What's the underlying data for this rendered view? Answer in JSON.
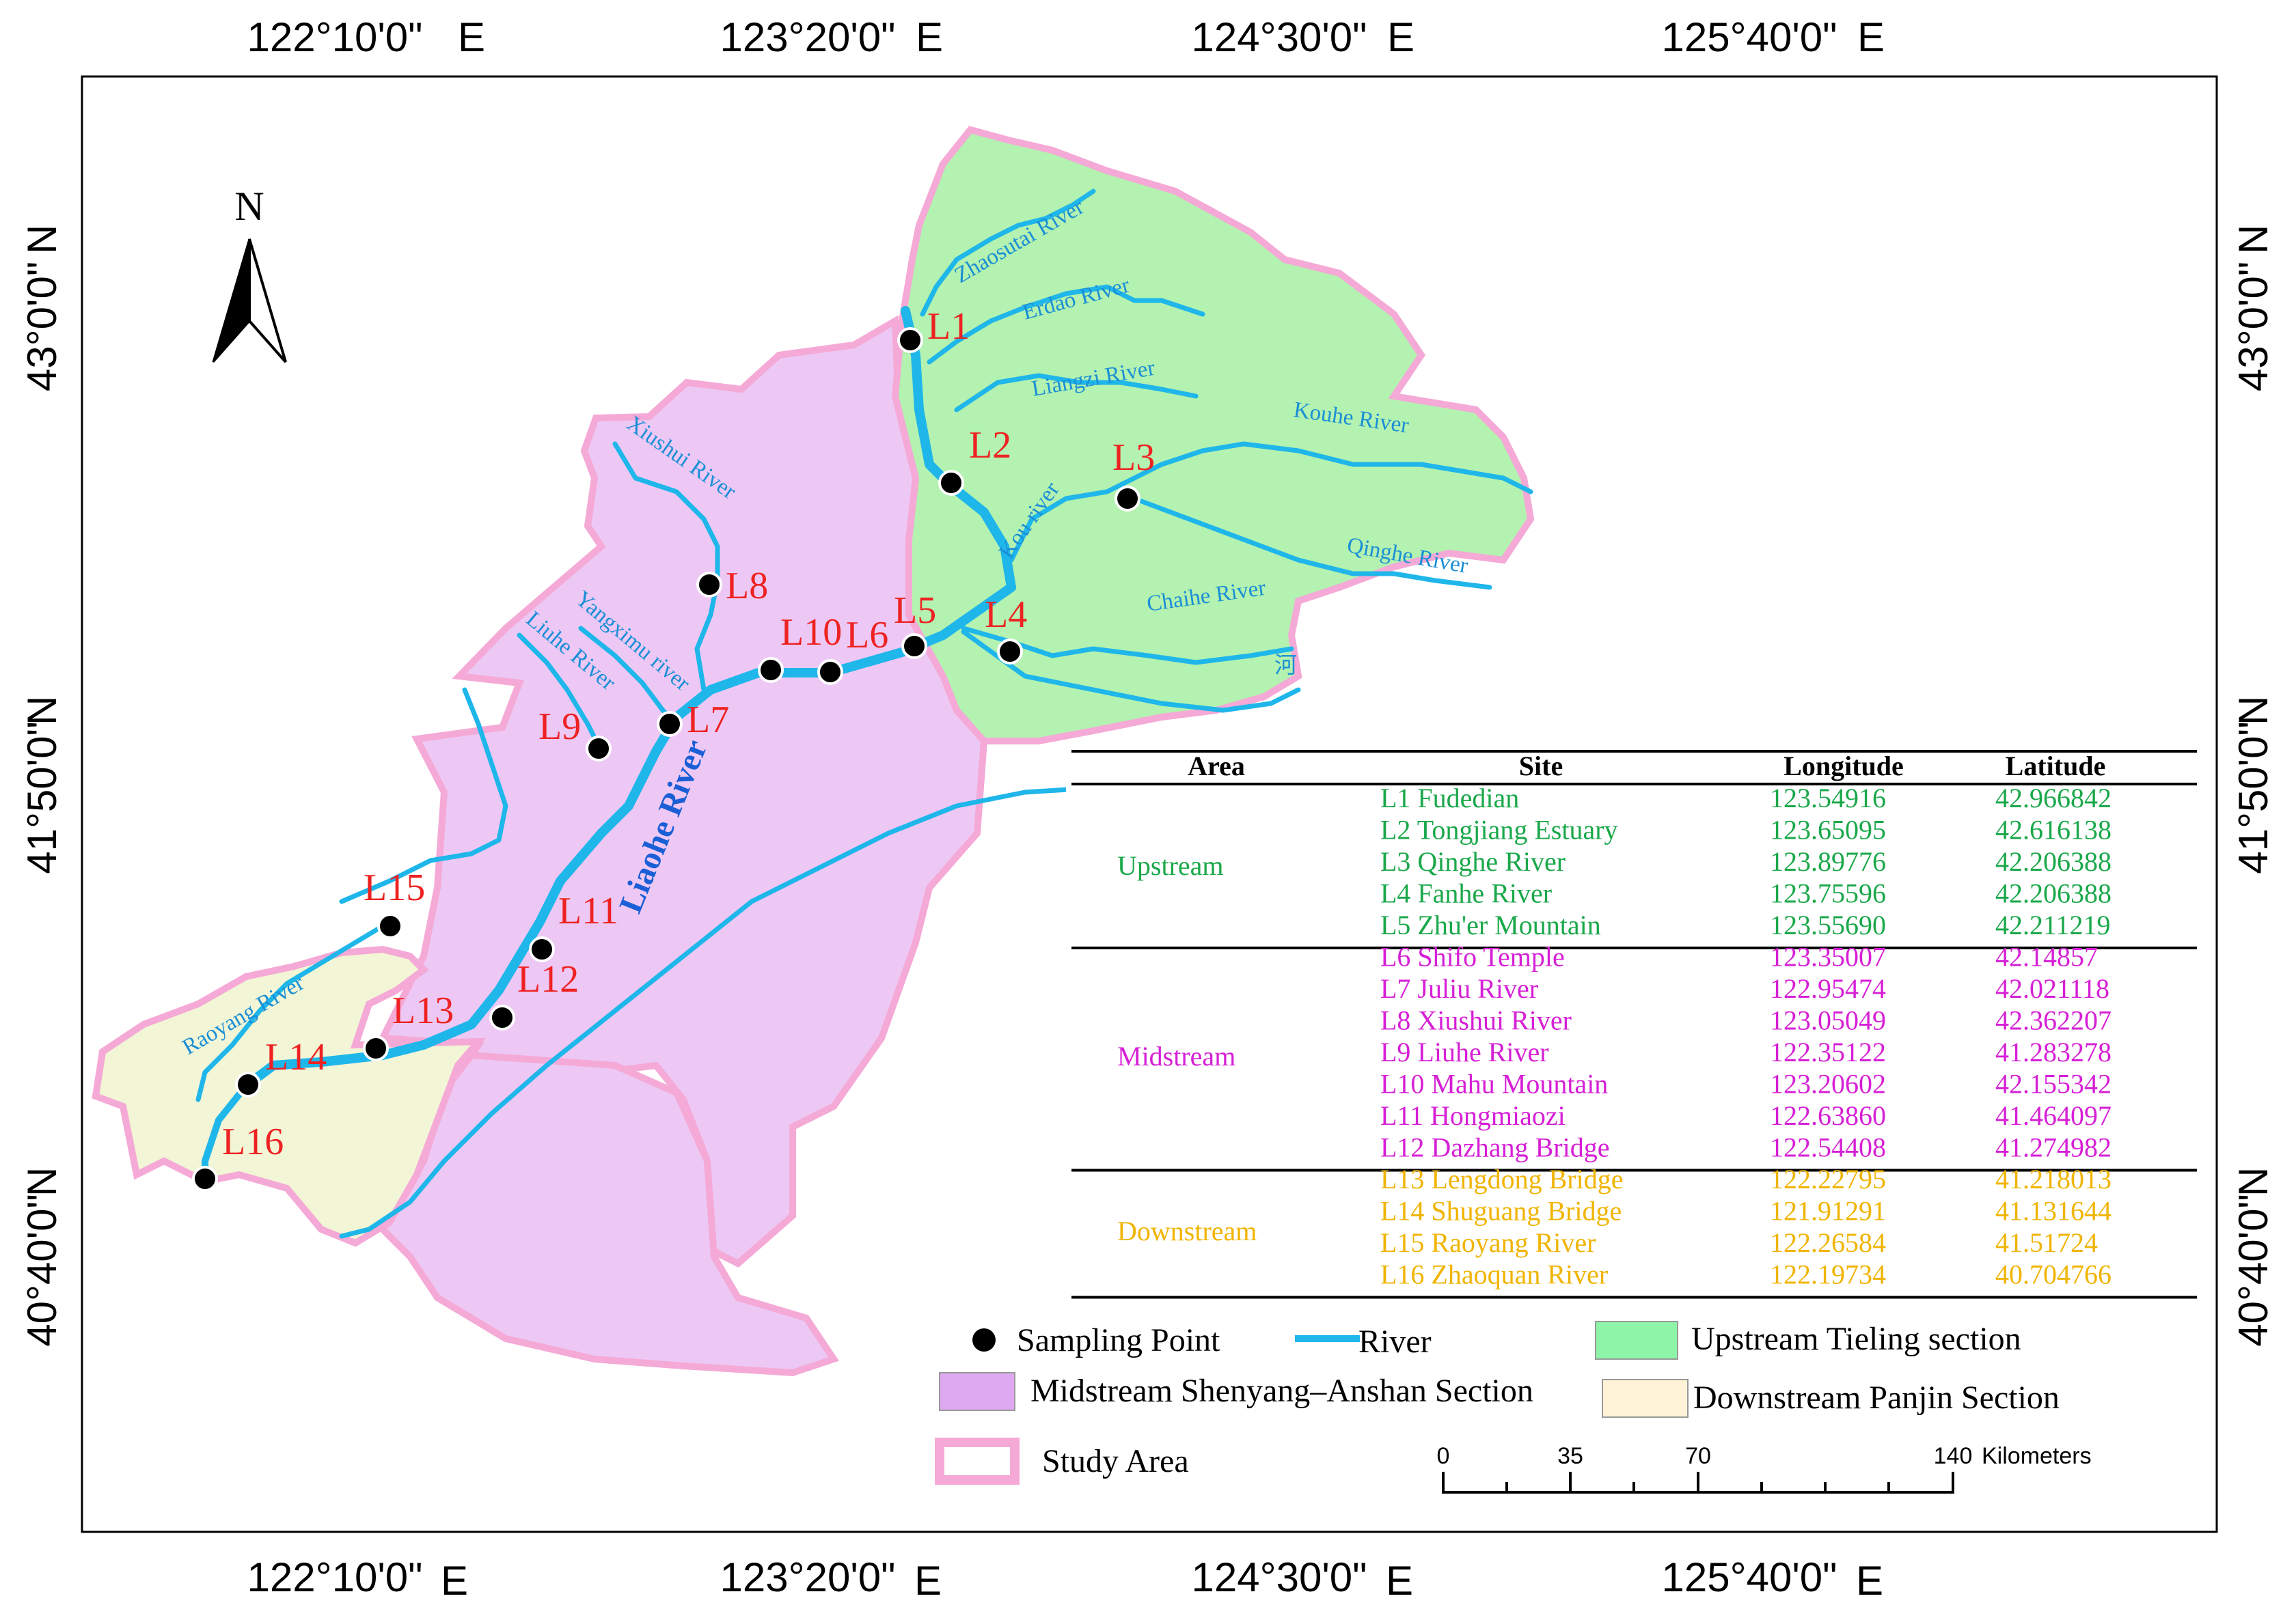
{
  "coordinates": {
    "top_longitudes": [
      "122°10'0\"",
      "123°20'0\"",
      "124°30'0\"",
      "125°40'0\""
    ],
    "bottom_longitudes": [
      "122°10'0\"",
      "123°20'0\"",
      "124°30'0\"",
      "125°40'0\""
    ],
    "east_suffix": "E",
    "left_latitudes": [
      "43°0'0\"",
      "41°50'0\"",
      "40°40'0\""
    ],
    "right_latitudes": [
      "43°0'0\"",
      "41°50'0\"",
      "40°40'0\""
    ],
    "north_suffix": "N"
  },
  "north_arrow": {
    "label": "N"
  },
  "rivers": {
    "zhaosutai": "Zhaosutai River",
    "erdao": "Erdao River",
    "liangzi": "Liangzi River",
    "kouhe": "Kouhe River",
    "qinghe": "Qinghe River",
    "kou": "Kou river",
    "chaihe": "Chaihe River",
    "he_char": "河",
    "xiushui": "Xiushui River",
    "yangximu": "Yangximu river",
    "liuhe": "Liuhe River",
    "liaohe": "Liaohe River",
    "raoyang": "Raoyang River"
  },
  "sites": {
    "L1": "L1",
    "L2": "L2",
    "L3": "L3",
    "L4": "L4",
    "L5": "L5",
    "L6": "L6",
    "L7": "L7",
    "L8": "L8",
    "L9": "L9",
    "L10": "L10",
    "L11": "L11",
    "L12": "L12",
    "L13": "L13",
    "L14": "L14",
    "L15": "L15",
    "L16": "L16"
  },
  "table": {
    "headers": {
      "area": "Area",
      "site": "Site",
      "longitude": "Longitude",
      "latitude": "Latitude"
    },
    "groups": [
      {
        "area": "Upstream",
        "color": "#1aa84a",
        "rows": [
          {
            "site": "L1 Fudedian",
            "lon": "123.54916",
            "lat": "42.966842"
          },
          {
            "site": "L2 Tongjiang Estuary",
            "lon": "123.65095",
            "lat": "42.616138"
          },
          {
            "site": "L3 Qinghe River",
            "lon": "123.89776",
            "lat": "42.206388"
          },
          {
            "site": "L4 Fanhe River",
            "lon": "123.75596",
            "lat": "42.206388"
          },
          {
            "site": "L5 Zhu'er Mountain",
            "lon": "123.55690",
            "lat": "42.211219"
          }
        ]
      },
      {
        "area": "Midstream",
        "color": "#d61fd6",
        "rows": [
          {
            "site": "L6 Shifo Temple",
            "lon": "123.35007",
            "lat": "42.14857"
          },
          {
            "site": "L7 Juliu River",
            "lon": "122.95474",
            "lat": "42.021118"
          },
          {
            "site": "L8 Xiushui River",
            "lon": "123.05049",
            "lat": "42.362207"
          },
          {
            "site": "L9 Liuhe River",
            "lon": "122.35122",
            "lat": "41.283278"
          },
          {
            "site": "L10 Mahu Mountain",
            "lon": "123.20602",
            "lat": "42.155342"
          },
          {
            "site": "L11 Hongmiaozi",
            "lon": "122.63860",
            "lat": "41.464097"
          },
          {
            "site": "L12 Dazhang Bridge",
            "lon": "122.54408",
            "lat": "41.274982"
          }
        ]
      },
      {
        "area": "Downstream",
        "color": "#f0b400",
        "rows": [
          {
            "site": "L13 Lengdong Bridge",
            "lon": "122.22795",
            "lat": "41.218013"
          },
          {
            "site": "L14 Shuguang Bridge",
            "lon": "121.91291",
            "lat": "41.131644"
          },
          {
            "site": "L15 Raoyang River",
            "lon": "122.26584",
            "lat": "41.51724"
          },
          {
            "site": "L16 Zhaoquan River",
            "lon": "122.19734",
            "lat": "40.704766"
          }
        ]
      }
    ]
  },
  "legend": {
    "sampling_point": "Sampling Point",
    "river": "River",
    "upstream": "Upstream Tieling section",
    "midstream": "Midstream Shenyang–Anshan Section",
    "downstream": "Downstream Panjin Section",
    "study_area": "Study Area"
  },
  "scale_bar": {
    "ticks": [
      "0",
      "35",
      "70",
      "140"
    ],
    "unit": "Kilometers"
  },
  "colors": {
    "upstream_fill": "#b3f2b0",
    "midstream_fill": "#edc8f5",
    "downstream_fill": "#f2f5d6",
    "study_area_border": "#f5a9d6",
    "river": "#1fb6ea",
    "site_label": "#ee2222"
  }
}
